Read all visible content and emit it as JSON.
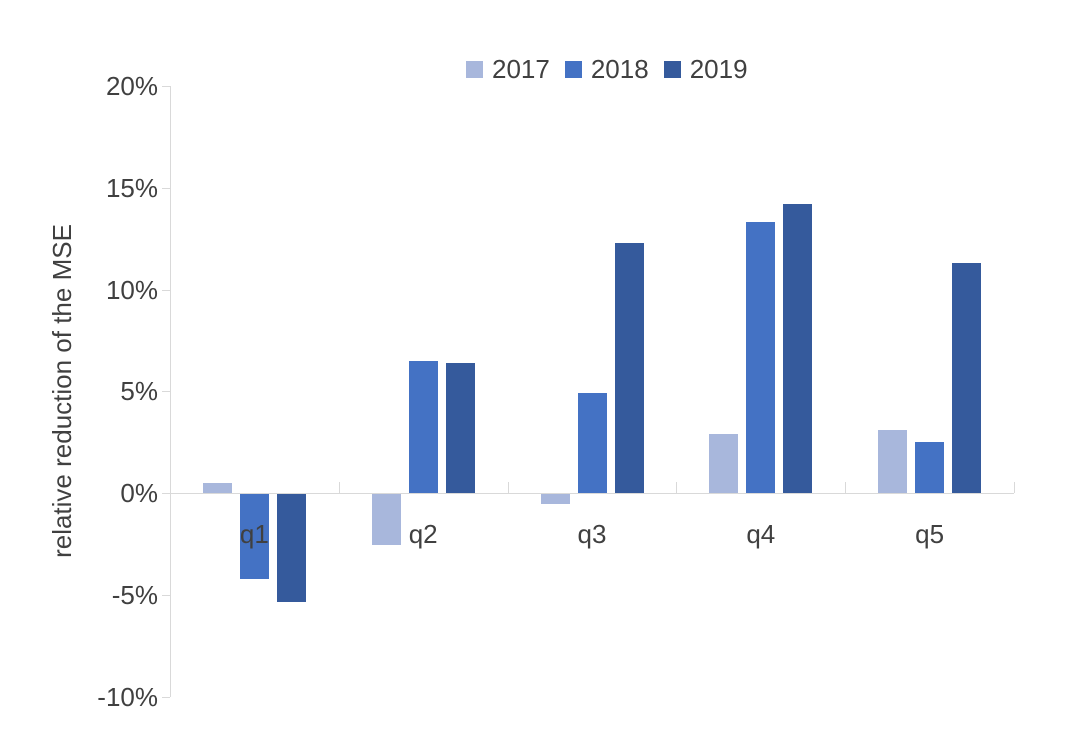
{
  "chart_data": {
    "type": "bar",
    "title": "",
    "categories": [
      "q1",
      "q2",
      "q3",
      "q4",
      "q5"
    ],
    "series": [
      {
        "name": "2017",
        "color": "#a8b7dc",
        "values": [
          0.5,
          -2.5,
          -0.5,
          2.9,
          3.1
        ]
      },
      {
        "name": "2018",
        "color": "#4472c4",
        "values": [
          -4.2,
          6.5,
          4.9,
          13.3,
          2.5
        ]
      },
      {
        "name": "2019",
        "color": "#355a9c",
        "values": [
          -5.3,
          6.4,
          12.3,
          14.2,
          11.3
        ]
      }
    ],
    "xlabel": "",
    "ylabel": "relative reduction of the MSE",
    "ylim": [
      -10,
      20
    ],
    "ytick_step": 5,
    "yticks": [
      {
        "value": 20,
        "label": "20%"
      },
      {
        "value": 15,
        "label": "15%"
      },
      {
        "value": 10,
        "label": "10%"
      },
      {
        "value": 5,
        "label": "5%"
      },
      {
        "value": 0,
        "label": "0%"
      },
      {
        "value": -5,
        "label": "-5%"
      },
      {
        "value": -10,
        "label": "-10%"
      }
    ],
    "legend_position": "top",
    "grid": false
  },
  "colors": {
    "background": "#ffffff",
    "axis_line": "#d9d9d9",
    "text": "#404040"
  }
}
